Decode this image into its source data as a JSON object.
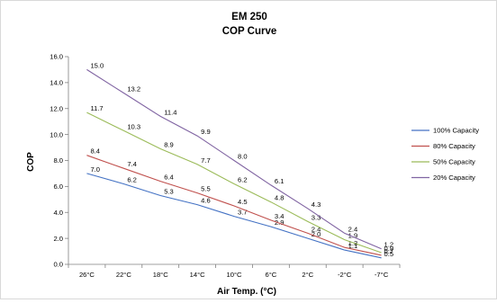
{
  "chart_data": {
    "type": "line",
    "title": "EM 250",
    "subtitle": "COP Curve",
    "xlabel": "Air Temp.  (°C)",
    "ylabel": "COP",
    "categories": [
      "26°C",
      "22°C",
      "18°C",
      "14°C",
      "10°C",
      "6°C",
      "2°C",
      "-2°C",
      "-7°C"
    ],
    "y_tick_labels": [
      "0.0",
      "2.0",
      "4.0",
      "6.0",
      "8.0",
      "10.0",
      "12.0",
      "14.0",
      "16.0"
    ],
    "ylim": [
      0,
      16
    ],
    "grid": false,
    "legend_position": "right",
    "series": [
      {
        "name": "100% Capacity",
        "color": "#4472c4",
        "values": [
          7.0,
          6.2,
          5.3,
          4.6,
          3.7,
          2.9,
          2.0,
          1.1,
          0.5
        ],
        "labels": [
          "7.0",
          "6.2",
          "5.3",
          "4.6",
          "3.7",
          "2.9",
          "2.0",
          "1.1",
          "0.5"
        ]
      },
      {
        "name": "80% Capacity",
        "color": "#c0504d",
        "values": [
          8.4,
          7.4,
          6.4,
          5.5,
          4.5,
          3.4,
          2.4,
          1.3,
          0.7
        ],
        "labels": [
          "8.4",
          "7.4",
          "6.4",
          "5.5",
          "4.5",
          "3.4",
          "2.4",
          "1.3",
          "0.7"
        ]
      },
      {
        "name": "50% Capacity",
        "color": "#9bbb59",
        "values": [
          11.7,
          10.3,
          8.9,
          7.7,
          6.2,
          4.8,
          3.3,
          1.9,
          0.9
        ],
        "labels": [
          "11.7",
          "10.3",
          "8.9",
          "7.7",
          "6.2",
          "4.8",
          "3.3",
          "1.9",
          "0.9"
        ]
      },
      {
        "name": "20% Capacity",
        "color": "#8064a2",
        "values": [
          15.0,
          13.2,
          11.4,
          9.9,
          8.0,
          6.1,
          4.3,
          2.4,
          1.2
        ],
        "labels": [
          "15.0",
          "13.2",
          "11.4",
          "9.9",
          "8.0",
          "6.1",
          "4.3",
          "2.4",
          "1.2"
        ]
      }
    ]
  }
}
